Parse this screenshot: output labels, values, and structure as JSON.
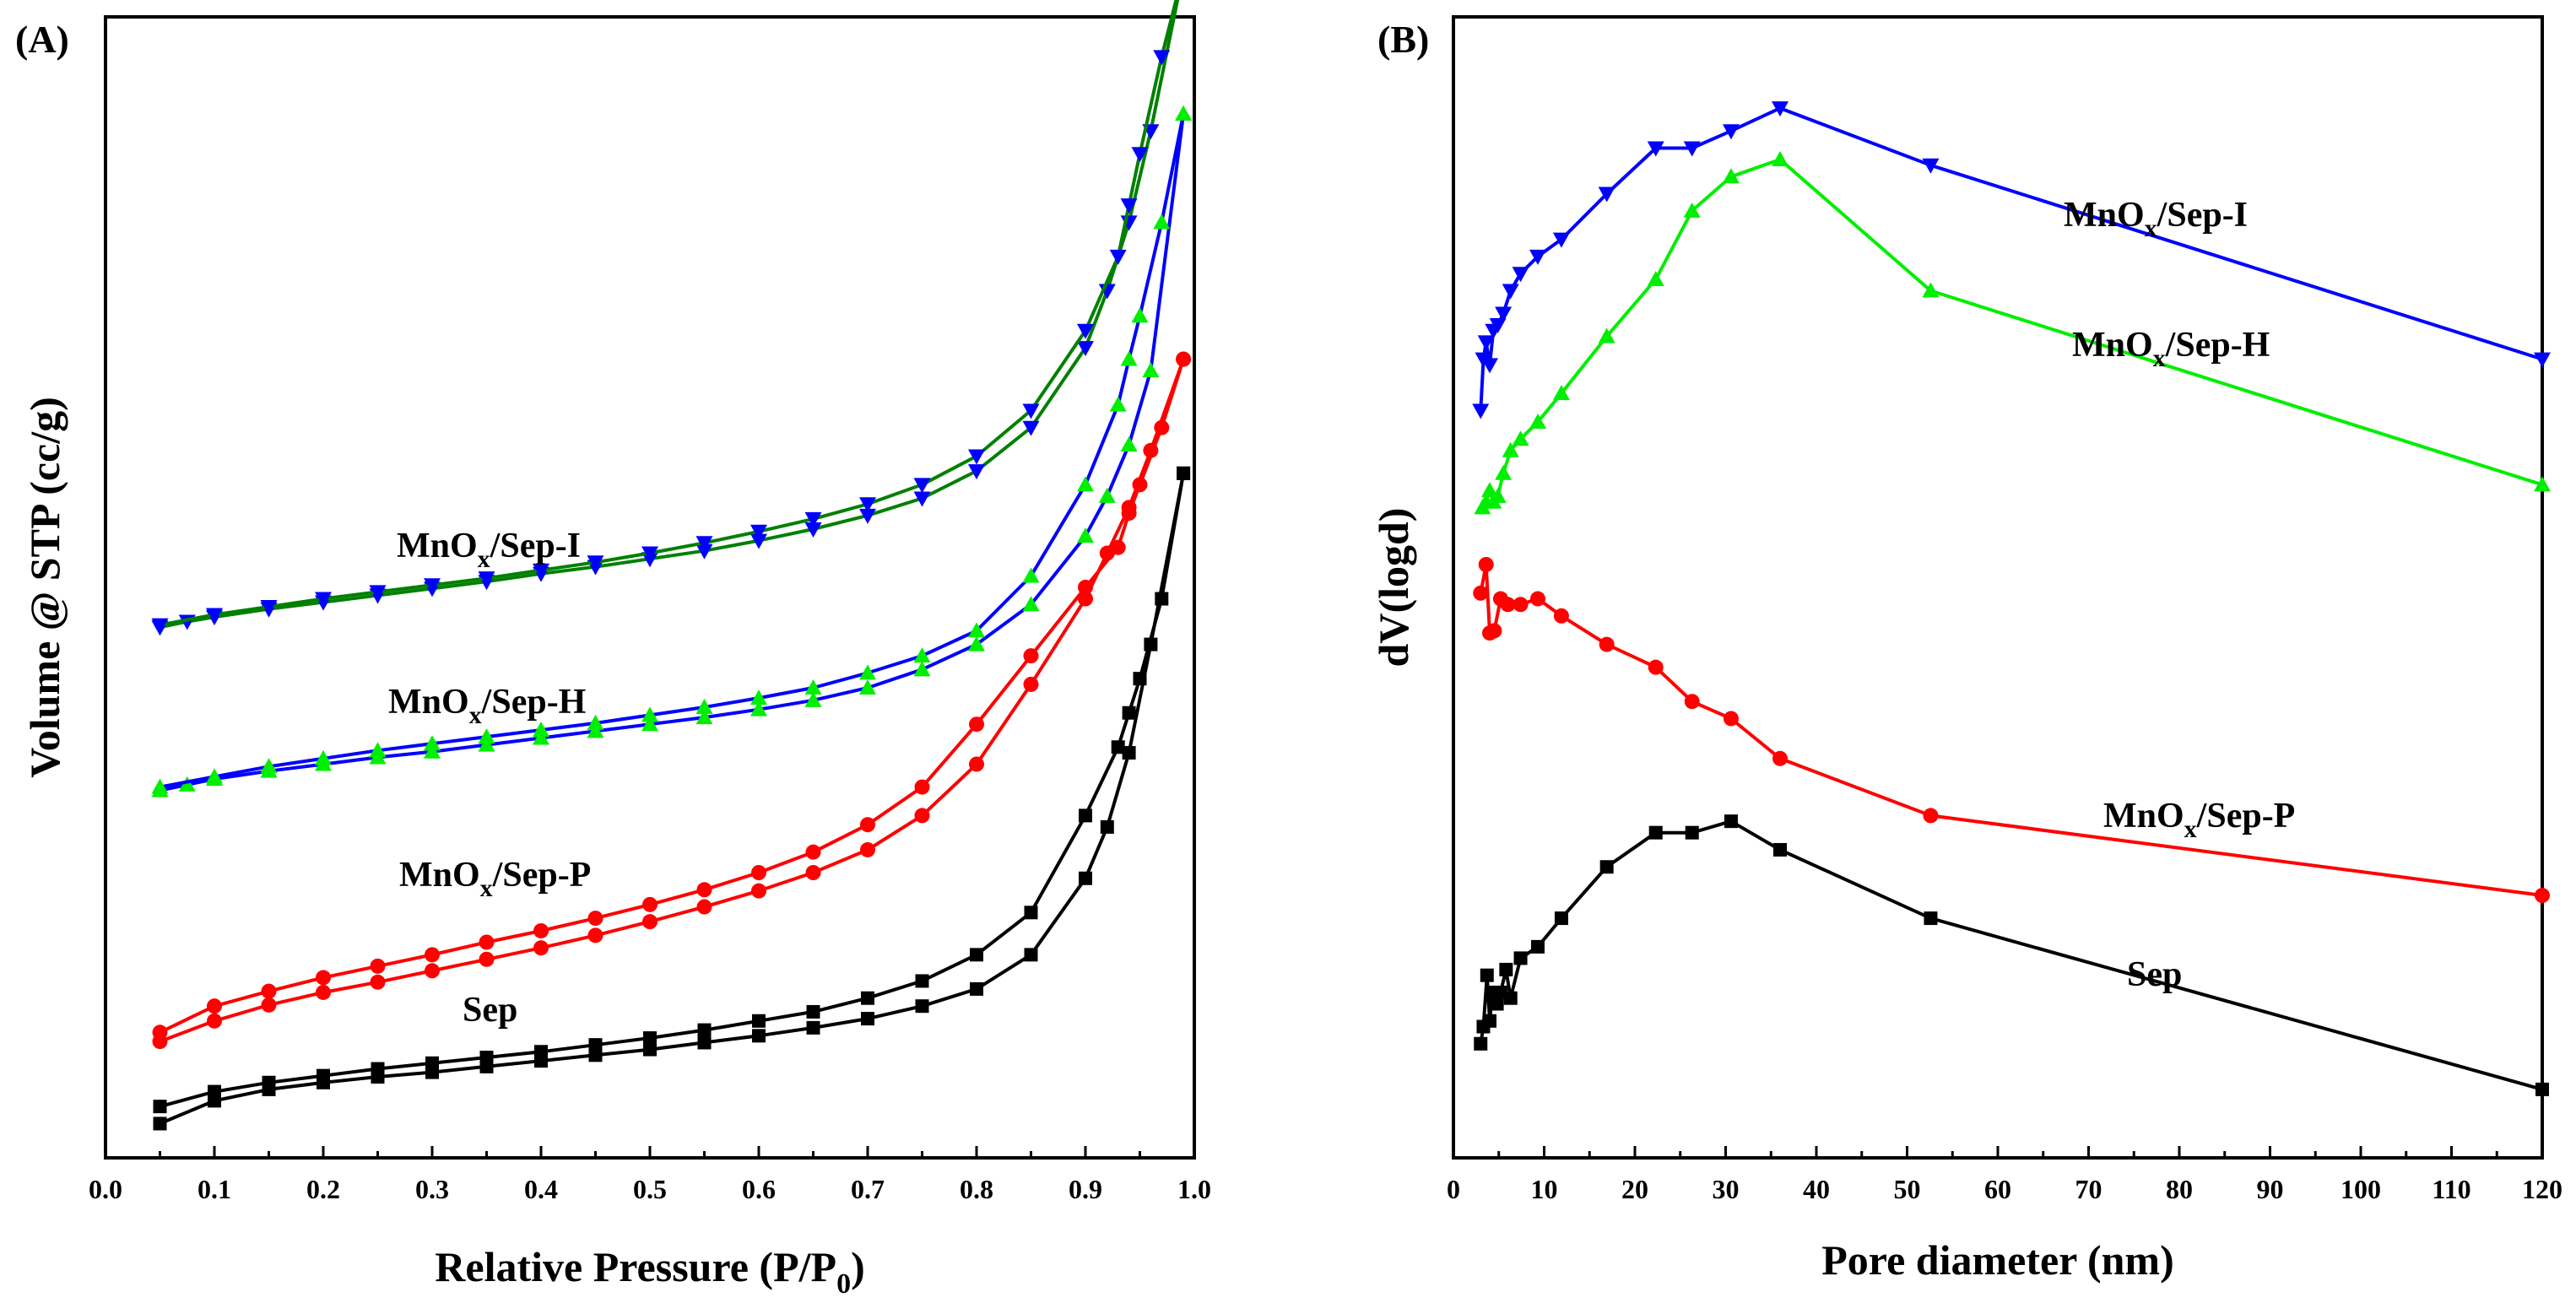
{
  "chart_data": [
    {
      "type": "line",
      "panel": "(A)",
      "xlabel": "Relative Pressure (P/P",
      "xlabel_sub": "0",
      "xlabel_end": ")",
      "ylabel": "Volume @ STP (cc/g)",
      "xlim": [
        0.0,
        1.0
      ],
      "ylim": [
        0,
        1000
      ],
      "yticks_hidden": true,
      "xticks": [
        0.0,
        0.1,
        0.2,
        0.3,
        0.4,
        0.5,
        0.6,
        0.7,
        0.8,
        0.9,
        1.0
      ],
      "xtick_labels": [
        "0.0",
        "0.1",
        "0.2",
        "0.3",
        "0.4",
        "0.5",
        "0.6",
        "0.7",
        "0.8",
        "0.9",
        "1.0"
      ],
      "series": [
        {
          "name": "Sep",
          "label_main": "Sep",
          "label_sub": "",
          "label_end": "",
          "marker": "square",
          "color": "#000000",
          "adsorption": {
            "x": [
              0.05,
              0.1,
              0.15,
              0.2,
              0.25,
              0.3,
              0.35,
              0.4,
              0.45,
              0.5,
              0.55,
              0.6,
              0.65,
              0.7,
              0.75,
              0.8,
              0.85,
              0.9,
              0.92,
              0.94,
              0.96,
              0.99
            ],
            "y": [
              30,
              50,
              60,
              66,
              71,
              75,
              80,
              85,
              90,
              95,
              101,
              107,
              114,
              122,
              133,
              148,
              178,
              245,
              290,
              355,
              450,
              600
            ]
          },
          "desorption": {
            "x": [
              0.99,
              0.97,
              0.95,
              0.94,
              0.93,
              0.9,
              0.85,
              0.8,
              0.75,
              0.7,
              0.65,
              0.6,
              0.55,
              0.5,
              0.45,
              0.4,
              0.35,
              0.3,
              0.25,
              0.2,
              0.15,
              0.1,
              0.05
            ],
            "y": [
              600,
              490,
              420,
              390,
              360,
              300,
              215,
              178,
              155,
              140,
              128,
              120,
              112,
              105,
              99,
              93,
              88,
              83,
              78,
              72,
              66,
              58,
              45
            ]
          }
        },
        {
          "name": "MnOx/Sep-P",
          "label_main": "MnO",
          "label_sub": "x",
          "label_end": "/Sep-P",
          "marker": "circle",
          "color": "#ff0000",
          "adsorption": {
            "x": [
              0.05,
              0.1,
              0.15,
              0.2,
              0.25,
              0.3,
              0.35,
              0.4,
              0.45,
              0.5,
              0.55,
              0.6,
              0.65,
              0.7,
              0.75,
              0.8,
              0.85,
              0.9,
              0.92,
              0.94,
              0.96,
              0.99
            ],
            "y": [
              102,
              120,
              134,
              145,
              154,
              164,
              174,
              184,
              195,
              207,
              220,
              234,
              250,
              270,
              300,
              345,
              415,
              490,
              530,
              570,
              620,
              700
            ]
          },
          "desorption": {
            "x": [
              0.99,
              0.97,
              0.95,
              0.94,
              0.93,
              0.9,
              0.85,
              0.8,
              0.75,
              0.7,
              0.65,
              0.6,
              0.55,
              0.5,
              0.45,
              0.4,
              0.35,
              0.3,
              0.25,
              0.2,
              0.15,
              0.1,
              0.05
            ],
            "y": [
              700,
              640,
              590,
              565,
              535,
              500,
              440,
              380,
              325,
              292,
              268,
              250,
              235,
              222,
              210,
              199,
              189,
              178,
              168,
              158,
              146,
              133,
              110
            ]
          }
        },
        {
          "name": "MnOx/Sep-H",
          "label_main": "MnO",
          "label_sub": "x",
          "label_end": "/Sep-H",
          "marker": "triangle-up",
          "color": "#00ee00",
          "line_color": "#0000ff",
          "adsorption": {
            "x": [
              0.05,
              0.075,
              0.1,
              0.15,
              0.2,
              0.25,
              0.3,
              0.35,
              0.4,
              0.45,
              0.5,
              0.55,
              0.6,
              0.65,
              0.7,
              0.75,
              0.8,
              0.85,
              0.9,
              0.92,
              0.94,
              0.96,
              0.99
            ],
            "y": [
              322,
              327,
              332,
              339,
              345,
              351,
              356,
              362,
              368,
              374,
              380,
              386,
              393,
              401,
              412,
              428,
              450,
              485,
              545,
              580,
              625,
              690,
              915
            ]
          },
          "desorption": {
            "x": [
              0.99,
              0.97,
              0.95,
              0.94,
              0.93,
              0.9,
              0.85,
              0.8,
              0.75,
              0.7,
              0.65,
              0.6,
              0.55,
              0.5,
              0.45,
              0.4,
              0.35,
              0.3,
              0.25,
              0.2,
              0.15,
              0.1,
              0.05
            ],
            "y": [
              915,
              820,
              738,
              700,
              660,
              590,
              510,
              462,
              440,
              425,
              412,
              403,
              395,
              388,
              381,
              375,
              369,
              363,
              357,
              350,
              343,
              334,
              325
            ]
          }
        },
        {
          "name": "MnOx/Sep-I",
          "label_main": "MnO",
          "label_sub": "x",
          "label_end": "/Sep-I",
          "marker": "triangle-down",
          "color": "#0000ff",
          "line_color": "#008000",
          "adsorption": {
            "x": [
              0.05,
              0.075,
              0.1,
              0.15,
              0.2,
              0.25,
              0.3,
              0.35,
              0.4,
              0.45,
              0.5,
              0.55,
              0.6,
              0.65,
              0.7,
              0.75,
              0.8,
              0.85,
              0.9,
              0.92,
              0.94,
              0.96,
              0.99
            ],
            "y": [
              465,
              470,
              474,
              481,
              487,
              493,
              499,
              505,
              512,
              518,
              525,
              532,
              541,
              551,
              563,
              578,
              602,
              640,
              710,
              760,
              820,
              900,
              1040
            ]
          },
          "desorption": {
            "x": [
              0.99,
              0.97,
              0.95,
              0.94,
              0.93,
              0.9,
              0.85,
              0.8,
              0.75,
              0.7,
              0.65,
              0.6,
              0.55,
              0.5,
              0.45,
              0.4,
              0.35,
              0.3,
              0.25,
              0.2,
              0.15,
              0.1,
              0.05
            ],
            "y": [
              1040,
              965,
              880,
              835,
              790,
              725,
              655,
              615,
              590,
              573,
              560,
              549,
              539,
              530,
              522,
              515,
              508,
              502,
              496,
              490,
              483,
              476,
              467
            ]
          }
        }
      ]
    },
    {
      "type": "line",
      "panel": "(B)",
      "xlabel": "Pore diameter (nm)",
      "ylabel": "dV(logd)",
      "xlim": [
        0,
        120
      ],
      "ylim": [
        0,
        1000
      ],
      "yticks_hidden": true,
      "xticks": [
        0,
        10,
        20,
        30,
        40,
        50,
        60,
        70,
        80,
        90,
        100,
        110,
        120
      ],
      "xtick_labels": [
        "0",
        "10",
        "20",
        "30",
        "40",
        "50",
        "60",
        "70",
        "80",
        "90",
        "100",
        "110",
        "120"
      ],
      "series": [
        {
          "name": "Sep",
          "label_main": "Sep",
          "label_sub": "",
          "label_end": "",
          "marker": "square",
          "color": "#000000",
          "x": [
            3.0,
            3.3,
            3.7,
            4.0,
            4.3,
            4.8,
            5.2,
            5.8,
            6.3,
            7.4,
            9.3,
            11.9,
            16.9,
            22.3,
            26.3,
            30.6,
            36.0,
            52.6,
            120
          ],
          "y": [
            100,
            115,
            160,
            120,
            145,
            135,
            145,
            165,
            140,
            175,
            185,
            210,
            255,
            285,
            285,
            295,
            270,
            210,
            60
          ]
        },
        {
          "name": "MnOx/Sep-P",
          "label_main": "MnO",
          "label_sub": "x",
          "label_end": "/Sep-P",
          "marker": "circle",
          "color": "#ff0000",
          "x": [
            3.0,
            3.6,
            4.0,
            4.5,
            5.2,
            6.0,
            7.4,
            9.3,
            11.9,
            16.9,
            22.3,
            26.3,
            30.6,
            36.0,
            52.6,
            120
          ],
          "y": [
            495,
            520,
            460,
            462,
            490,
            485,
            485,
            490,
            475,
            450,
            430,
            400,
            385,
            350,
            300,
            230
          ]
        },
        {
          "name": "MnOx/Sep-H",
          "label_main": "MnO",
          "label_sub": "x",
          "label_end": "/Sep-H",
          "marker": "triangle-up",
          "color": "#00ee00",
          "x": [
            3.2,
            3.6,
            4.0,
            4.4,
            4.9,
            5.5,
            6.3,
            7.4,
            9.3,
            11.9,
            16.9,
            22.3,
            26.3,
            30.6,
            36.0,
            52.6,
            120
          ],
          "y": [
            570,
            575,
            585,
            575,
            580,
            600,
            620,
            630,
            645,
            670,
            720,
            770,
            830,
            860,
            875,
            760,
            590
          ]
        },
        {
          "name": "MnOx/Sep-I",
          "label_main": "MnO",
          "label_sub": "x",
          "label_end": "/Sep-I",
          "marker": "triangle-down",
          "color": "#0000ff",
          "x": [
            3.0,
            3.3,
            3.6,
            4.0,
            4.4,
            4.9,
            5.5,
            6.3,
            7.4,
            9.3,
            11.9,
            16.9,
            22.3,
            26.3,
            30.6,
            36.0,
            52.6,
            120
          ],
          "y": [
            655,
            700,
            715,
            695,
            725,
            730,
            740,
            760,
            775,
            790,
            805,
            845,
            885,
            885,
            900,
            920,
            870,
            700
          ]
        }
      ]
    }
  ]
}
